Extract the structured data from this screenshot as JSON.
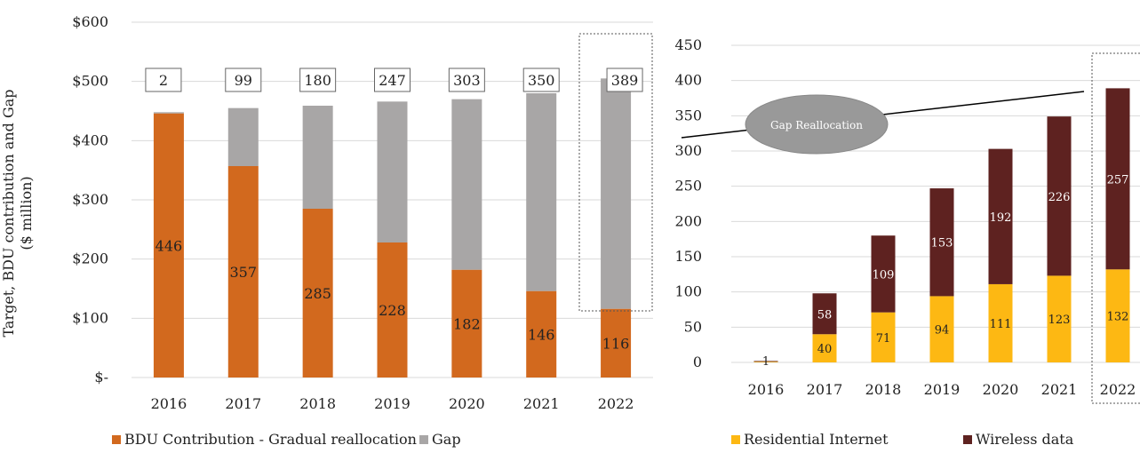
{
  "colors": {
    "bdu": "#D2691E",
    "gap": "#A8A6A6",
    "residential": "#FDB813",
    "wireless": "#5E2220",
    "grid": "#D9D9D9",
    "oval": "#999999"
  },
  "left_chart": {
    "ylabel_line1": "Target, BDU contribution and Gap",
    "ylabel_line2": "($ million)",
    "y_tick_labels": [
      "$-",
      "$100",
      "$200",
      "$300",
      "$400",
      "$500",
      "$600"
    ],
    "legend": [
      "BDU Contribution - Gradual reallocation",
      "Gap"
    ]
  },
  "right_chart": {
    "y_tick_labels": [
      "0",
      "50",
      "100",
      "150",
      "200",
      "250",
      "300",
      "350",
      "400",
      "450"
    ],
    "legend": [
      "Residential Internet",
      "Wireless data"
    ],
    "annotation": "Gap Reallocation"
  },
  "chart_data": [
    {
      "type": "bar",
      "stacked": true,
      "categories": [
        "2016",
        "2017",
        "2018",
        "2019",
        "2020",
        "2021",
        "2022"
      ],
      "series": [
        {
          "name": "BDU Contribution - Gradual reallocation",
          "values": [
            446,
            357,
            285,
            228,
            182,
            146,
            116
          ]
        },
        {
          "name": "Gap",
          "values": [
            2,
            99,
            180,
            247,
            303,
            350,
            389
          ]
        }
      ],
      "ylabel": "Target, BDU contribution and Gap ($ million)",
      "ylim": [
        0,
        600
      ],
      "grid": true,
      "legend_position": "bottom"
    },
    {
      "type": "bar",
      "stacked": true,
      "categories": [
        "2016",
        "2017",
        "2018",
        "2019",
        "2020",
        "2021",
        "2022"
      ],
      "series": [
        {
          "name": "Residential Internet",
          "values": [
            1,
            40,
            71,
            94,
            111,
            123,
            132
          ]
        },
        {
          "name": "Wireless data",
          "values": [
            1,
            58,
            109,
            153,
            192,
            226,
            257
          ]
        }
      ],
      "ylim": [
        0,
        450
      ],
      "grid": true,
      "legend_position": "bottom",
      "annotations": [
        "Gap Reallocation"
      ]
    }
  ]
}
